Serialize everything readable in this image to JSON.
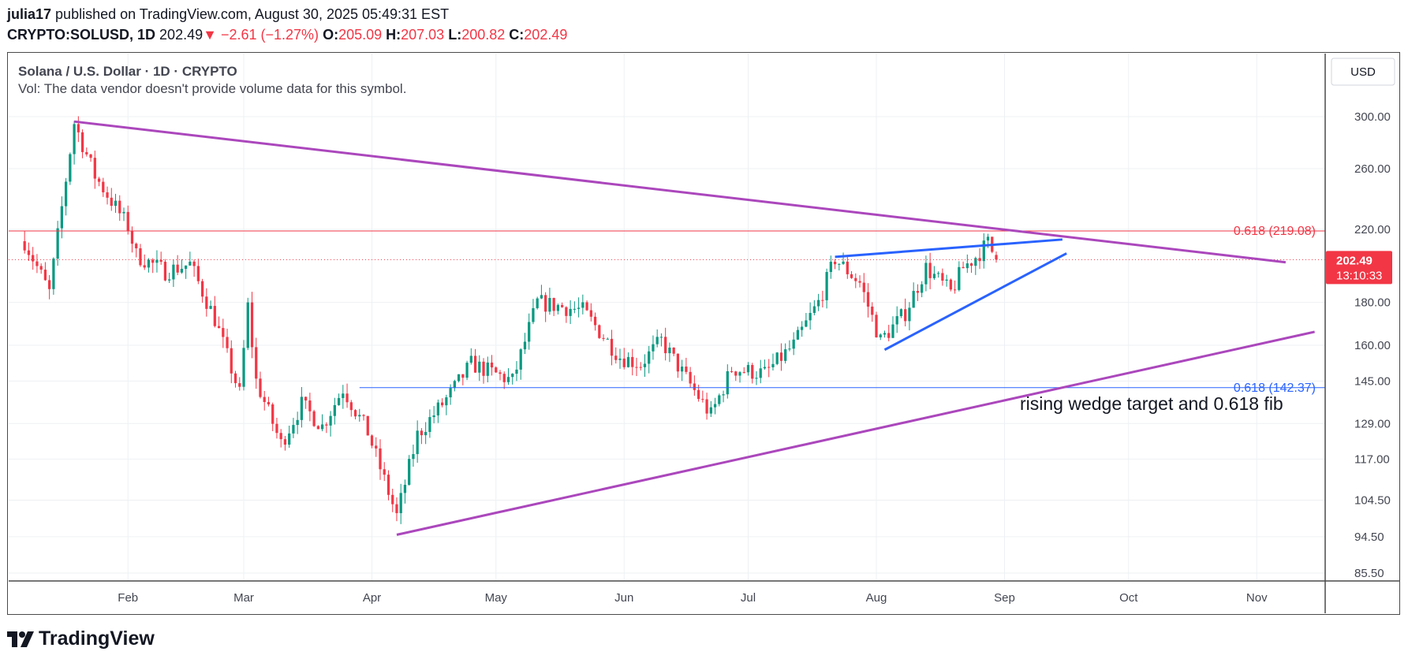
{
  "header": {
    "author": "julia17",
    "published_text": "published on TradingView.com, August 30, 2025 05:49:31 EST",
    "symbol": "CRYPTO:SOLUSD, 1D",
    "price": "202.49",
    "change": "−2.61 (−1.27%)",
    "o_label": "O:",
    "o_value": "205.09",
    "h_label": "H:",
    "h_value": "207.03",
    "l_label": "L:",
    "l_value": "200.82",
    "c_label": "C:",
    "c_value": "202.49"
  },
  "legend": {
    "title": "Solana / U.S. Dollar · 1D · CRYPTO",
    "vol_note": "Vol: The data vendor doesn't provide volume data for this symbol."
  },
  "currency": "USD",
  "footer_brand": "TradingView",
  "colors": {
    "up": "#089981",
    "down": "#f23645",
    "purple": "#ab47bc",
    "blue": "#2962ff",
    "red_line": "#f23645",
    "grid": "#eef0f3",
    "axis_text": "#434651"
  },
  "chart_data": {
    "type": "candlestick",
    "x_axis": {
      "labels": [
        "Feb",
        "Mar",
        "Apr",
        "May",
        "Jun",
        "Jul",
        "Aug",
        "Sep",
        "Oct",
        "Nov"
      ]
    },
    "y_axis": {
      "scale": "log",
      "range": [
        82,
        320
      ],
      "ticks": [
        300.0,
        260.0,
        220.0,
        180.0,
        160.0,
        145.0,
        129.0,
        117.0,
        104.5,
        94.5,
        85.5
      ]
    },
    "last_price": {
      "value": "202.49",
      "countdown": "13:10:33"
    },
    "anchors": [
      {
        "d": "2025-01-07",
        "p": 213
      },
      {
        "d": "2025-01-13",
        "p": 185
      },
      {
        "d": "2025-01-19",
        "p": 295
      },
      {
        "d": "2025-01-24",
        "p": 255
      },
      {
        "d": "2025-02-01",
        "p": 222
      },
      {
        "d": "2025-02-03",
        "p": 205
      },
      {
        "d": "2025-02-10",
        "p": 196
      },
      {
        "d": "2025-02-16",
        "p": 200
      },
      {
        "d": "2025-02-22",
        "p": 172
      },
      {
        "d": "2025-02-28",
        "p": 140
      },
      {
        "d": "2025-03-02",
        "p": 178
      },
      {
        "d": "2025-03-04",
        "p": 145
      },
      {
        "d": "2025-03-10",
        "p": 122
      },
      {
        "d": "2025-03-15",
        "p": 136
      },
      {
        "d": "2025-03-20",
        "p": 128
      },
      {
        "d": "2025-03-25",
        "p": 142
      },
      {
        "d": "2025-03-31",
        "p": 126
      },
      {
        "d": "2025-04-07",
        "p": 100
      },
      {
        "d": "2025-04-12",
        "p": 125
      },
      {
        "d": "2025-04-20",
        "p": 140
      },
      {
        "d": "2025-04-25",
        "p": 152
      },
      {
        "d": "2025-05-05",
        "p": 145
      },
      {
        "d": "2025-05-11",
        "p": 180
      },
      {
        "d": "2025-05-22",
        "p": 176
      },
      {
        "d": "2025-05-31",
        "p": 155
      },
      {
        "d": "2025-06-05",
        "p": 152
      },
      {
        "d": "2025-06-10",
        "p": 162
      },
      {
        "d": "2025-06-16",
        "p": 146
      },
      {
        "d": "2025-06-22",
        "p": 132
      },
      {
        "d": "2025-06-27",
        "p": 150
      },
      {
        "d": "2025-07-05",
        "p": 148
      },
      {
        "d": "2025-07-12",
        "p": 160
      },
      {
        "d": "2025-07-18",
        "p": 180
      },
      {
        "d": "2025-07-22",
        "p": 203
      },
      {
        "d": "2025-07-28",
        "p": 190
      },
      {
        "d": "2025-08-02",
        "p": 162
      },
      {
        "d": "2025-08-08",
        "p": 175
      },
      {
        "d": "2025-08-13",
        "p": 198
      },
      {
        "d": "2025-08-19",
        "p": 185
      },
      {
        "d": "2025-08-22",
        "p": 198
      },
      {
        "d": "2025-08-25",
        "p": 204
      },
      {
        "d": "2025-08-28",
        "p": 212
      },
      {
        "d": "2025-08-30",
        "p": 202.49
      }
    ],
    "annotations": {
      "fib_upper": {
        "label": "0.618 (219.08)",
        "price": 219.08
      },
      "fib_lower": {
        "label": "0.618 (142.37)",
        "price": 142.37,
        "start": "2025-03-29"
      },
      "purple_top": {
        "from": {
          "d": "2025-01-19",
          "p": 296
        },
        "to": {
          "d": "2025-11-08",
          "p": 201
        }
      },
      "purple_bottom": {
        "from": {
          "d": "2025-04-07",
          "p": 95
        },
        "to": {
          "d": "2025-11-15",
          "p": 166
        }
      },
      "wedge_top": {
        "from": {
          "d": "2025-07-22",
          "p": 204
        },
        "to": {
          "d": "2025-09-15",
          "p": 214
        }
      },
      "wedge_bottom": {
        "from": {
          "d": "2025-08-03",
          "p": 158
        },
        "to": {
          "d": "2025-09-16",
          "p": 206
        }
      },
      "note": "rising wedge target and 0.618 fib"
    }
  }
}
